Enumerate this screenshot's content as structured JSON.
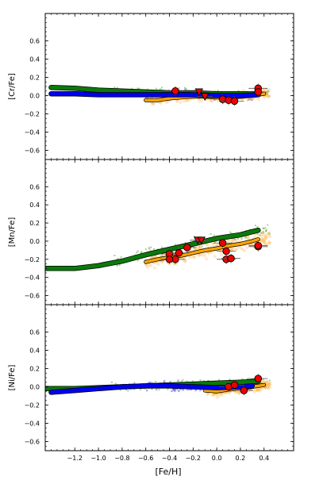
{
  "chart_data": {
    "type": "scatter",
    "xlabel": "[Fe/H]",
    "xlim": [
      -1.45,
      0.65
    ],
    "x_ticks": [
      "−1.2",
      "−1.0",
      "−0.8",
      "−0.6",
      "−0.4",
      "−0.2",
      "0.0",
      "0.2",
      "0.4"
    ],
    "y_ticks": [
      "−0.6",
      "−0.4",
      "−0.2",
      "0.0",
      "0.2",
      "0.4",
      "0.6"
    ],
    "ylim": [
      -0.7,
      0.9
    ],
    "colors": {
      "thick_trend": "#0a7a0a",
      "thin_trend": "#0000ee",
      "bulge_trend": "#ffa500",
      "targets": "#ee0000",
      "thick_scatter": "#6ab04c",
      "thin_scatter": "#3a3ad8",
      "bulge_scatter": "#ffb347"
    },
    "panels": [
      {
        "ylabel": "[Cr/Fe]",
        "green_trend": {
          "x": [
            -1.4,
            -1.2,
            -1.0,
            -0.8,
            -0.6,
            -0.4,
            -0.2,
            0.0,
            0.2,
            0.35
          ],
          "y": [
            0.09,
            0.08,
            0.06,
            0.05,
            0.04,
            0.03,
            0.03,
            0.02,
            0.02,
            0.02
          ]
        },
        "blue_trend": {
          "x": [
            -1.4,
            -1.2,
            -1.0,
            -0.8,
            -0.6,
            -0.4,
            -0.2,
            0.0,
            0.2,
            0.35
          ],
          "y": [
            0.02,
            0.02,
            0.01,
            0.01,
            0.01,
            0.01,
            0.01,
            0.0,
            0.0,
            0.01
          ]
        },
        "orange_trend": {
          "x": [
            -0.6,
            -0.5,
            -0.4,
            -0.3,
            -0.2,
            -0.1,
            0.0,
            0.1,
            0.2,
            0.3,
            0.4
          ],
          "y": [
            -0.05,
            -0.05,
            -0.03,
            -0.02,
            -0.01,
            -0.01,
            -0.02,
            -0.02,
            -0.01,
            0.0,
            0.02
          ]
        },
        "targets_circle": [
          {
            "x": -0.35,
            "y": 0.05
          },
          {
            "x": 0.05,
            "y": -0.04
          },
          {
            "x": 0.1,
            "y": -0.05
          },
          {
            "x": 0.15,
            "y": -0.06
          },
          {
            "x": 0.35,
            "y": 0.08
          },
          {
            "x": 0.35,
            "y": 0.04
          }
        ],
        "targets_triangle": [
          {
            "x": -0.15,
            "y": 0.04
          },
          {
            "x": -0.1,
            "y": -0.01
          }
        ]
      },
      {
        "ylabel": "[Mn/Fe]",
        "green_trend": {
          "x": [
            -1.45,
            -1.2,
            -1.0,
            -0.8,
            -0.6,
            -0.4,
            -0.2,
            0.0,
            0.2,
            0.35
          ],
          "y": [
            -0.3,
            -0.3,
            -0.27,
            -0.22,
            -0.15,
            -0.09,
            -0.03,
            0.03,
            0.07,
            0.12
          ]
        },
        "blue_trend": {
          "x": [],
          "y": []
        },
        "orange_trend": {
          "x": [
            -0.6,
            -0.5,
            -0.4,
            -0.3,
            -0.2,
            -0.1,
            0.0,
            0.1,
            0.2,
            0.3,
            0.35
          ],
          "y": [
            -0.23,
            -0.2,
            -0.18,
            -0.16,
            -0.13,
            -0.1,
            -0.08,
            -0.05,
            -0.03,
            0.0,
            0.02
          ]
        },
        "targets_circle": [
          {
            "x": -0.4,
            "y": -0.14
          },
          {
            "x": -0.35,
            "y": -0.2
          },
          {
            "x": -0.4,
            "y": -0.2
          },
          {
            "x": -0.32,
            "y": -0.13
          },
          {
            "x": -0.25,
            "y": -0.07
          },
          {
            "x": 0.05,
            "y": -0.02
          },
          {
            "x": 0.08,
            "y": -0.11
          },
          {
            "x": 0.08,
            "y": -0.2
          },
          {
            "x": 0.12,
            "y": -0.19
          },
          {
            "x": 0.35,
            "y": -0.06
          },
          {
            "x": 0.35,
            "y": -0.05
          }
        ],
        "targets_triangle": [
          {
            "x": -0.16,
            "y": 0.01
          },
          {
            "x": -0.13,
            "y": 0.01
          }
        ]
      },
      {
        "ylabel": "[Ni/Fe]",
        "green_trend": {
          "x": [
            -1.45,
            -1.2,
            -1.0,
            -0.8,
            -0.6,
            -0.4,
            -0.2,
            0.0,
            0.2,
            0.35
          ],
          "y": [
            -0.02,
            -0.02,
            -0.01,
            0.0,
            0.01,
            0.02,
            0.03,
            0.04,
            0.05,
            0.06
          ]
        },
        "blue_trend": {
          "x": [
            -1.4,
            -1.2,
            -1.0,
            -0.8,
            -0.6,
            -0.4,
            -0.2,
            0.0,
            0.2,
            0.3
          ],
          "y": [
            -0.06,
            -0.04,
            -0.02,
            0.0,
            0.01,
            0.01,
            0.0,
            -0.01,
            0.0,
            0.01
          ]
        },
        "orange_trend": {
          "x": [
            -0.1,
            0.0,
            0.1,
            0.2,
            0.3,
            0.4
          ],
          "y": [
            -0.04,
            -0.05,
            -0.03,
            -0.02,
            0.0,
            0.02
          ]
        },
        "targets_circle": [
          {
            "x": 0.1,
            "y": 0.0
          },
          {
            "x": 0.15,
            "y": 0.02
          },
          {
            "x": 0.23,
            "y": -0.04
          },
          {
            "x": 0.35,
            "y": 0.09
          }
        ],
        "targets_triangle": []
      }
    ]
  }
}
